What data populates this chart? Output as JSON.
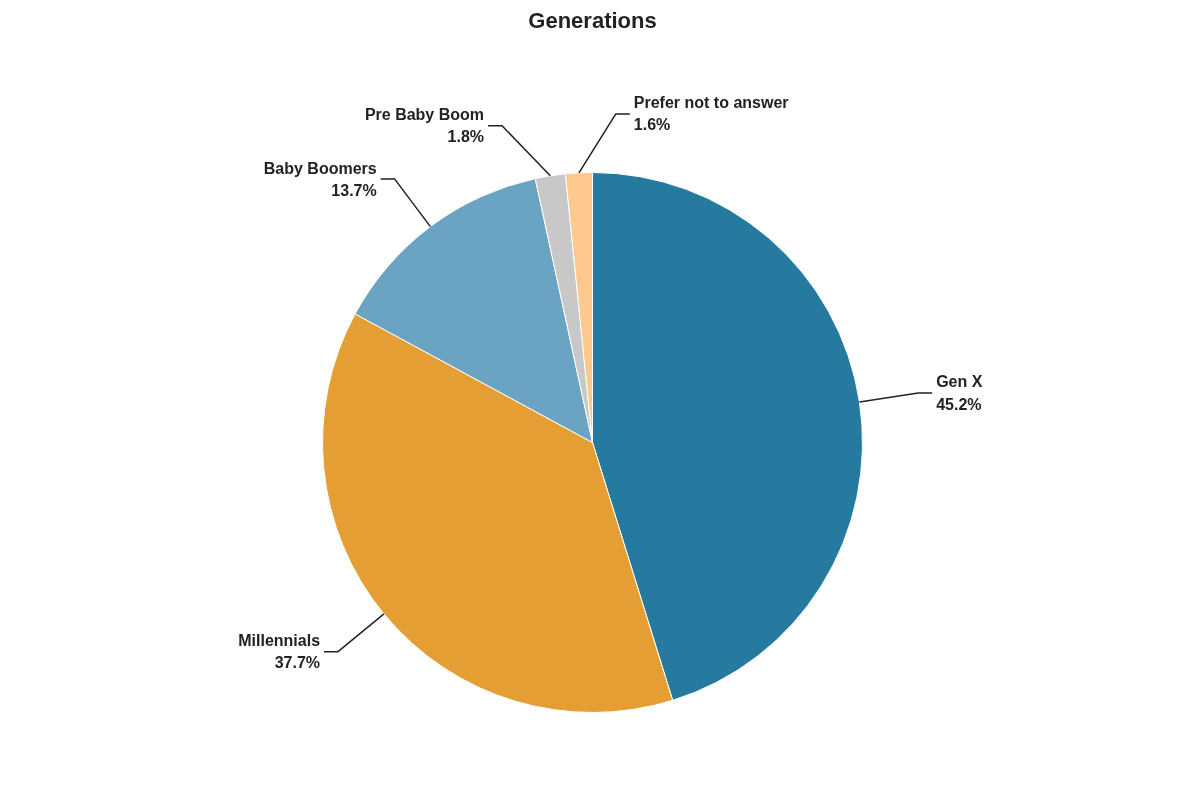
{
  "chart_data": {
    "type": "pie",
    "title": "Generations",
    "categories": [
      "Gen X",
      "Millennials",
      "Baby Boomers",
      "Pre Baby Boom",
      "Prefer not to answer"
    ],
    "values": [
      45.2,
      37.7,
      13.7,
      1.8,
      1.6
    ],
    "colors": [
      "#26799f",
      "#e49e33",
      "#6ba3c2",
      "#c8c8c8",
      "#fdc98c"
    ],
    "value_labels": [
      "45.2%",
      "37.7%",
      "13.7%",
      "1.8%",
      "1.6%"
    ]
  }
}
